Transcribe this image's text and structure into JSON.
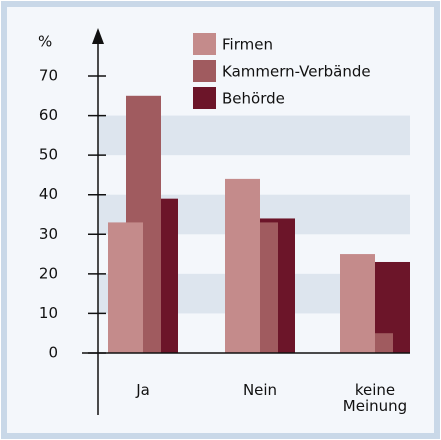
{
  "chart_data": {
    "type": "bar",
    "y_label": "%",
    "categories": [
      "Ja",
      "Nein",
      "keine Meinung"
    ],
    "series": [
      {
        "name": "Firmen",
        "color": "#c48b8b",
        "values": [
          33,
          44,
          25
        ]
      },
      {
        "name": "Kammern-Verbände",
        "color": "#a05b5f",
        "values": [
          65,
          33,
          5
        ]
      },
      {
        "name": "Behörde",
        "color": "#6c1529",
        "values": [
          39,
          34,
          23
        ]
      }
    ],
    "ylim": [
      0,
      70
    ],
    "yticks": [
      0,
      10,
      20,
      30,
      40,
      50,
      60,
      70
    ],
    "grid": true
  }
}
